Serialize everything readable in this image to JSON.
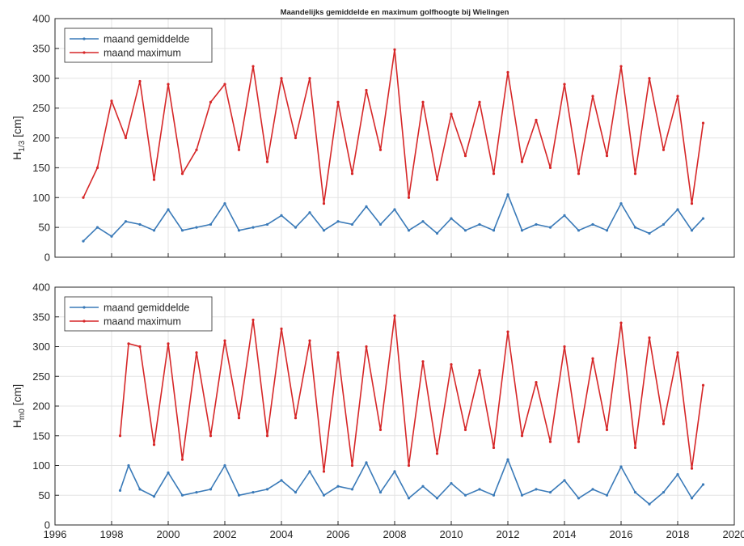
{
  "chart_data": [
    {
      "type": "line",
      "title": "Maandelijks gemiddelde en maximum golfhoogte bij Wielingen",
      "ylabel": "H_{1/3} [cm]",
      "ylabel_main": "H",
      "ylabel_sub": "1/3",
      "ylabel_unit": "[cm]",
      "xlim": [
        1996,
        2020
      ],
      "ylim": [
        0,
        400
      ],
      "xticks": [
        1996,
        1998,
        2000,
        2002,
        2004,
        2006,
        2008,
        2010,
        2012,
        2014,
        2016,
        2018,
        2020
      ],
      "yticks": [
        0,
        50,
        100,
        150,
        200,
        250,
        300,
        350,
        400
      ],
      "grid": true,
      "legend_position": "top-left",
      "series": [
        {
          "name": "maand gemiddelde",
          "color": "#3a7ab8",
          "x": [
            1997.0,
            1997.5,
            1998.0,
            1998.5,
            1999.0,
            1999.5,
            2000.0,
            2000.5,
            2001.0,
            2001.5,
            2002.0,
            2002.5,
            2003.0,
            2003.5,
            2004.0,
            2004.5,
            2005.0,
            2005.5,
            2006.0,
            2006.5,
            2007.0,
            2007.5,
            2008.0,
            2008.5,
            2009.0,
            2009.5,
            2010.0,
            2010.5,
            2011.0,
            2011.5,
            2012.0,
            2012.5,
            2013.0,
            2013.5,
            2014.0,
            2014.5,
            2015.0,
            2015.5,
            2016.0,
            2016.5,
            2017.0,
            2017.5,
            2018.0,
            2018.5,
            2018.9
          ],
          "values": [
            27,
            50,
            35,
            60,
            55,
            45,
            80,
            45,
            50,
            55,
            90,
            45,
            50,
            55,
            70,
            50,
            75,
            45,
            60,
            55,
            85,
            55,
            80,
            45,
            60,
            40,
            65,
            45,
            55,
            45,
            105,
            45,
            55,
            50,
            70,
            45,
            55,
            45,
            90,
            50,
            40,
            55,
            80,
            45,
            65
          ]
        },
        {
          "name": "maand maximum",
          "color": "#d62728",
          "x": [
            1997.0,
            1997.5,
            1998.0,
            1998.5,
            1999.0,
            1999.5,
            2000.0,
            2000.5,
            2001.0,
            2001.5,
            2002.0,
            2002.5,
            2003.0,
            2003.5,
            2004.0,
            2004.5,
            2005.0,
            2005.5,
            2006.0,
            2006.5,
            2007.0,
            2007.5,
            2008.0,
            2008.5,
            2009.0,
            2009.5,
            2010.0,
            2010.5,
            2011.0,
            2011.5,
            2012.0,
            2012.5,
            2013.0,
            2013.5,
            2014.0,
            2014.5,
            2015.0,
            2015.5,
            2016.0,
            2016.5,
            2017.0,
            2017.5,
            2018.0,
            2018.5,
            2018.9
          ],
          "values": [
            100,
            150,
            262,
            200,
            295,
            130,
            290,
            140,
            180,
            260,
            290,
            180,
            320,
            160,
            300,
            200,
            300,
            90,
            260,
            140,
            280,
            180,
            348,
            100,
            260,
            130,
            240,
            170,
            260,
            140,
            310,
            160,
            230,
            150,
            290,
            140,
            270,
            170,
            320,
            140,
            300,
            180,
            270,
            90,
            225
          ]
        }
      ]
    },
    {
      "type": "line",
      "title": "",
      "ylabel": "H_{m0} [cm]",
      "ylabel_main": "H",
      "ylabel_sub": "m0",
      "ylabel_unit": "[cm]",
      "xlim": [
        1996,
        2020
      ],
      "ylim": [
        0,
        400
      ],
      "xticks": [
        1996,
        1998,
        2000,
        2002,
        2004,
        2006,
        2008,
        2010,
        2012,
        2014,
        2016,
        2018,
        2020
      ],
      "yticks": [
        0,
        50,
        100,
        150,
        200,
        250,
        300,
        350,
        400
      ],
      "grid": true,
      "legend_position": "top-left",
      "series": [
        {
          "name": "maand gemiddelde",
          "color": "#3a7ab8",
          "x": [
            1998.3,
            1998.6,
            1999.0,
            1999.5,
            2000.0,
            2000.5,
            2001.0,
            2001.5,
            2002.0,
            2002.5,
            2003.0,
            2003.5,
            2004.0,
            2004.5,
            2005.0,
            2005.5,
            2006.0,
            2006.5,
            2007.0,
            2007.5,
            2008.0,
            2008.5,
            2009.0,
            2009.5,
            2010.0,
            2010.5,
            2011.0,
            2011.5,
            2012.0,
            2012.5,
            2013.0,
            2013.5,
            2014.0,
            2014.5,
            2015.0,
            2015.5,
            2016.0,
            2016.5,
            2017.0,
            2017.5,
            2018.0,
            2018.5,
            2018.9
          ],
          "values": [
            58,
            100,
            60,
            48,
            88,
            50,
            55,
            60,
            100,
            50,
            55,
            60,
            75,
            55,
            90,
            50,
            65,
            60,
            105,
            55,
            90,
            45,
            65,
            45,
            70,
            50,
            60,
            50,
            110,
            50,
            60,
            55,
            75,
            45,
            60,
            50,
            98,
            55,
            35,
            55,
            85,
            45,
            68
          ]
        },
        {
          "name": "maand maximum",
          "color": "#d62728",
          "x": [
            1998.3,
            1998.6,
            1999.0,
            1999.5,
            2000.0,
            2000.5,
            2001.0,
            2001.5,
            2002.0,
            2002.5,
            2003.0,
            2003.5,
            2004.0,
            2004.5,
            2005.0,
            2005.5,
            2006.0,
            2006.5,
            2007.0,
            2007.5,
            2008.0,
            2008.5,
            2009.0,
            2009.5,
            2010.0,
            2010.5,
            2011.0,
            2011.5,
            2012.0,
            2012.5,
            2013.0,
            2013.5,
            2014.0,
            2014.5,
            2015.0,
            2015.5,
            2016.0,
            2016.5,
            2017.0,
            2017.5,
            2018.0,
            2018.5,
            2018.9
          ],
          "values": [
            150,
            305,
            300,
            135,
            305,
            110,
            290,
            150,
            310,
            180,
            345,
            150,
            330,
            180,
            310,
            90,
            290,
            100,
            300,
            160,
            352,
            100,
            275,
            120,
            270,
            160,
            260,
            130,
            325,
            150,
            240,
            140,
            300,
            140,
            280,
            160,
            340,
            130,
            315,
            170,
            290,
            95,
            235
          ]
        }
      ]
    }
  ]
}
